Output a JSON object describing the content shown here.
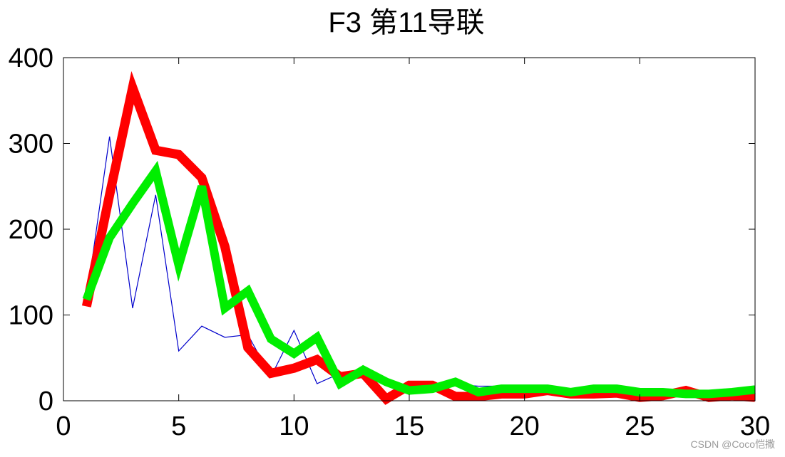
{
  "chart_data": {
    "type": "line",
    "title": "F3 第11导联",
    "xlim": [
      0,
      30
    ],
    "ylim": [
      0,
      400
    ],
    "xticks": [
      0,
      5,
      10,
      15,
      20,
      25,
      30
    ],
    "yticks": [
      0,
      100,
      200,
      300,
      400
    ],
    "grid": false,
    "x": [
      1,
      2,
      3,
      4,
      5,
      6,
      7,
      8,
      9,
      10,
      11,
      12,
      13,
      14,
      15,
      16,
      17,
      18,
      19,
      20,
      21,
      22,
      23,
      24,
      25,
      26,
      27,
      28,
      29,
      30
    ],
    "series": [
      {
        "color": "#0000cc",
        "values": [
          118,
          308,
          108,
          240,
          58,
          87,
          74,
          77,
          28,
          82,
          20,
          32,
          30,
          20,
          14,
          16,
          19,
          17,
          17,
          12,
          17,
          13,
          15,
          17,
          12,
          12,
          9,
          9,
          9,
          7
        ]
      },
      {
        "color": "#ff0000",
        "values": [
          110,
          240,
          365,
          292,
          287,
          260,
          180,
          62,
          32,
          38,
          48,
          28,
          32,
          2,
          18,
          18,
          5,
          5,
          8,
          8,
          12,
          8,
          8,
          9,
          4,
          6,
          12,
          4,
          6,
          4
        ]
      },
      {
        "color": "#00ee00",
        "values": [
          118,
          190,
          230,
          268,
          158,
          250,
          108,
          128,
          72,
          55,
          74,
          20,
          36,
          22,
          12,
          14,
          22,
          10,
          14,
          14,
          14,
          10,
          14,
          14,
          10,
          10,
          8,
          8,
          10,
          13
        ]
      }
    ]
  },
  "watermark": "CSDN @Coco恺撒"
}
